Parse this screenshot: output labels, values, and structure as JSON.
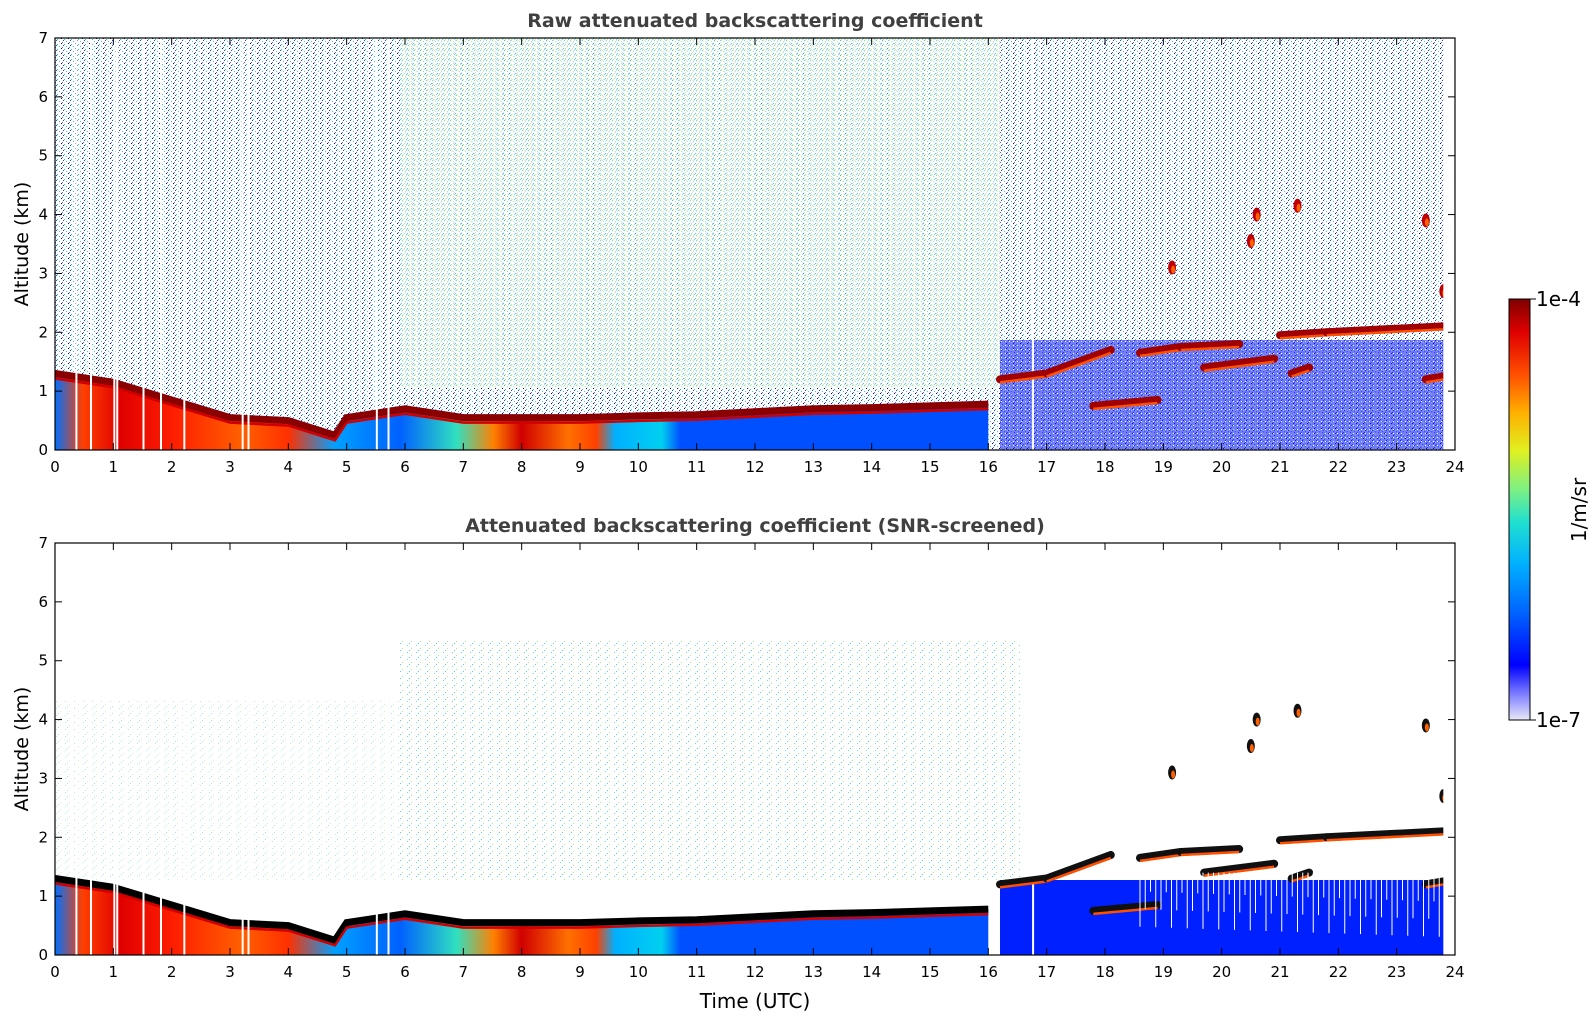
{
  "chart_data": [
    {
      "type": "heatmap",
      "title": "Raw attenuated backscattering coefficient",
      "xlabel": "",
      "ylabel": "Altitude (km)",
      "xlim": [
        0,
        24
      ],
      "ylim": [
        0,
        7
      ],
      "xticks": [
        "0",
        "1",
        "2",
        "3",
        "4",
        "5",
        "6",
        "7",
        "8",
        "9",
        "10",
        "11",
        "12",
        "13",
        "14",
        "15",
        "16",
        "17",
        "18",
        "19",
        "20",
        "21",
        "22",
        "23",
        "24"
      ],
      "yticks": [
        "0",
        "1",
        "2",
        "3",
        "4",
        "5",
        "6",
        "7"
      ],
      "grid": false,
      "layers": {
        "boundary_layer_top_km": [
          {
            "t": 0,
            "z": 1.3
          },
          {
            "t": 1,
            "z": 1.15
          },
          {
            "t": 2,
            "z": 0.85
          },
          {
            "t": 3,
            "z": 0.55
          },
          {
            "t": 4,
            "z": 0.5
          },
          {
            "t": 4.8,
            "z": 0.25
          },
          {
            "t": 5,
            "z": 0.55
          },
          {
            "t": 6,
            "z": 0.7
          },
          {
            "t": 7,
            "z": 0.55
          },
          {
            "t": 8,
            "z": 0.55
          },
          {
            "t": 9,
            "z": 0.55
          },
          {
            "t": 10,
            "z": 0.58
          },
          {
            "t": 11,
            "z": 0.6
          },
          {
            "t": 12,
            "z": 0.65
          },
          {
            "t": 13,
            "z": 0.7
          },
          {
            "t": 14,
            "z": 0.72
          },
          {
            "t": 15,
            "z": 0.75
          },
          {
            "t": 16,
            "z": 0.78
          }
        ],
        "elevated_cloud_segments": [
          {
            "t0": 16.2,
            "t1": 17.0,
            "z0": 1.2,
            "z1": 1.3
          },
          {
            "t0": 17.0,
            "t1": 18.1,
            "z0": 1.3,
            "z1": 1.7
          },
          {
            "t0": 17.8,
            "t1": 18.9,
            "z0": 0.75,
            "z1": 0.85
          },
          {
            "t0": 18.6,
            "t1": 19.3,
            "z0": 1.65,
            "z1": 1.75
          },
          {
            "t0": 19.3,
            "t1": 20.3,
            "z0": 1.75,
            "z1": 1.8
          },
          {
            "t0": 19.7,
            "t1": 20.9,
            "z0": 1.4,
            "z1": 1.55
          },
          {
            "t0": 21.0,
            "t1": 21.8,
            "z0": 1.95,
            "z1": 2.0
          },
          {
            "t0": 21.8,
            "t1": 23.8,
            "z0": 2.0,
            "z1": 2.1
          },
          {
            "t0": 21.2,
            "t1": 21.5,
            "z0": 1.3,
            "z1": 1.4
          },
          {
            "t0": 23.5,
            "t1": 23.8,
            "z0": 1.2,
            "z1": 1.25
          }
        ],
        "isolated_cloud_patches": [
          {
            "t": 19.15,
            "z": 3.1
          },
          {
            "t": 20.5,
            "z": 3.55
          },
          {
            "t": 20.6,
            "z": 4.0
          },
          {
            "t": 21.3,
            "z": 4.15
          },
          {
            "t": 23.5,
            "z": 3.9
          },
          {
            "t": 23.8,
            "z": 2.7
          }
        ],
        "data_gaps_hours": [
          0.35,
          0.6,
          1.0,
          1.05,
          1.5,
          1.8,
          2.2,
          3.2,
          3.3,
          5.5,
          5.7,
          16.75
        ]
      }
    },
    {
      "type": "heatmap",
      "title": "Attenuated backscattering coefficient (SNR-screened)",
      "xlabel": "Time (UTC)",
      "ylabel": "Altitude (km)",
      "xlim": [
        0,
        24
      ],
      "ylim": [
        0,
        7
      ],
      "xticks": [
        "0",
        "1",
        "2",
        "3",
        "4",
        "5",
        "6",
        "7",
        "8",
        "9",
        "10",
        "11",
        "12",
        "13",
        "14",
        "15",
        "16",
        "17",
        "18",
        "19",
        "20",
        "21",
        "22",
        "23",
        "24"
      ],
      "yticks": [
        "0",
        "1",
        "2",
        "3",
        "4",
        "5",
        "6",
        "7"
      ],
      "grid": false
    }
  ],
  "colorbar": {
    "label": "1/m/sr",
    "max_label": "1e-4",
    "min_label": "1e-7",
    "scale": "log",
    "range": [
      1e-07,
      0.0001
    ],
    "colormap": [
      "#e8e8f8",
      "#8080ff",
      "#0000ff",
      "#0060ff",
      "#00b0ff",
      "#20e0d0",
      "#80f080",
      "#e0f020",
      "#ffb000",
      "#ff5000",
      "#e00000",
      "#7f0000"
    ]
  }
}
